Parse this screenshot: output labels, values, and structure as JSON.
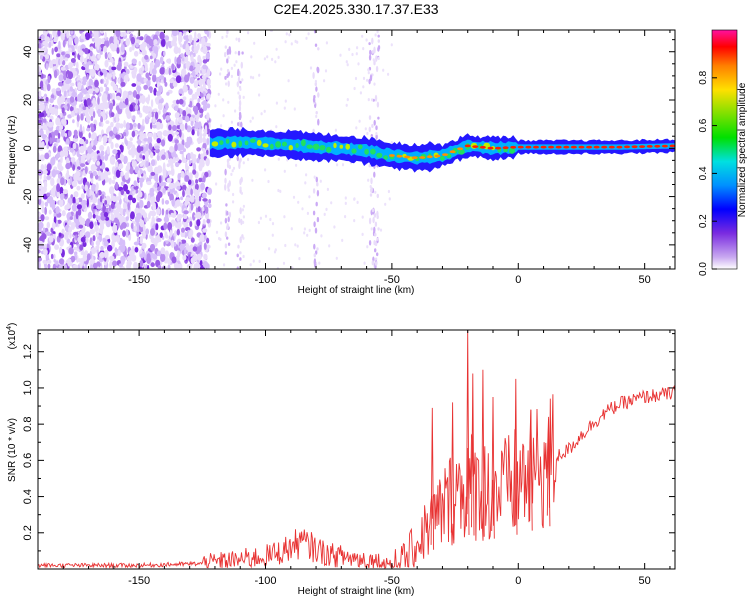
{
  "title": "C2E4.2025.330.17.37.E33",
  "colors": {
    "snr_line": "#e83232",
    "axis": "#000000"
  },
  "chart_data": [
    {
      "type": "heatmap",
      "xlabel": "Height of straight line (km)",
      "ylabel": "Frequency (Hz)",
      "xlim": [
        -190,
        62
      ],
      "ylim": [
        -50,
        49
      ],
      "xticks": [
        -150,
        -100,
        -50,
        0,
        50
      ],
      "xtick_labels": [
        "-150",
        "-100",
        "-50",
        "0",
        "50"
      ],
      "yticks": [
        -40,
        -20,
        0,
        20,
        40
      ],
      "ytick_labels": [
        "-40",
        "-20",
        "0",
        "20",
        "40"
      ],
      "noise_region": {
        "x_range": [
          -190,
          -122
        ],
        "description": "scattered purple speckle"
      },
      "signal_band_center": [
        [
          -122,
          2
        ],
        [
          -110,
          2.5
        ],
        [
          -100,
          2
        ],
        [
          -90,
          1.5
        ],
        [
          -80,
          0.5
        ],
        [
          -70,
          0
        ],
        [
          -60,
          -1
        ],
        [
          -50,
          -3
        ],
        [
          -40,
          -4
        ],
        [
          -30,
          -3
        ],
        [
          -25,
          -1
        ],
        [
          -20,
          1
        ],
        [
          -15,
          0.5
        ],
        [
          -10,
          0
        ],
        [
          0,
          0.5
        ],
        [
          20,
          0.5
        ],
        [
          40,
          0.5
        ],
        [
          62,
          1
        ]
      ],
      "colorbar": {
        "label": "Normalized spectral amplitude",
        "range": [
          0.0,
          1.0
        ],
        "ticks": [
          0.0,
          0.2,
          0.4,
          0.6,
          0.8
        ],
        "tick_labels": [
          "0.0",
          "0.2",
          "0.4",
          "0.6",
          "0.8"
        ]
      }
    },
    {
      "type": "line",
      "xlabel": "Height of straight line (km)",
      "ylabel": "SNR (10 * v/v)",
      "y_multiplier_label": "(x10",
      "y_multiplier_exp": "4",
      "xlim": [
        -190,
        62
      ],
      "ylim": [
        0,
        1.32
      ],
      "xticks": [
        -150,
        -100,
        -50,
        0,
        50
      ],
      "xtick_labels": [
        "-150",
        "-100",
        "-50",
        "0",
        "50"
      ],
      "yticks": [
        0.2,
        0.4,
        0.6,
        0.8,
        1.0,
        1.2
      ],
      "ytick_labels": [
        "0.2",
        "0.4",
        "0.6",
        "0.8",
        "1.0",
        "1.2"
      ],
      "series": [
        {
          "name": "SNR",
          "x": [
            -190,
            -150,
            -125,
            -112,
            -100,
            -95,
            -90,
            -86,
            -80,
            -75,
            -70,
            -65,
            -60,
            -55,
            -50,
            -45,
            -40,
            -35,
            -30,
            -25,
            -20,
            -15,
            -10,
            -5,
            0,
            5,
            10,
            15,
            20,
            25,
            30,
            35,
            40,
            45,
            50,
            55,
            62
          ],
          "values": [
            0.02,
            0.02,
            0.03,
            0.05,
            0.07,
            0.09,
            0.12,
            0.15,
            0.11,
            0.08,
            0.07,
            0.06,
            0.05,
            0.04,
            0.03,
            0.06,
            0.14,
            0.25,
            0.33,
            0.42,
            0.47,
            0.45,
            0.42,
            0.44,
            0.48,
            0.53,
            0.57,
            0.62,
            0.66,
            0.74,
            0.81,
            0.87,
            0.91,
            0.93,
            0.95,
            0.96,
            0.97
          ]
        }
      ],
      "spikes": [
        {
          "x": -34,
          "value": 0.89
        },
        {
          "x": -26,
          "value": 0.92
        },
        {
          "x": -20,
          "value": 1.32
        },
        {
          "x": -18,
          "value": 1.08
        },
        {
          "x": -14,
          "value": 1.1
        },
        {
          "x": -10,
          "value": 0.95
        },
        {
          "x": -1,
          "value": 1.05
        },
        {
          "x": 5,
          "value": 0.88
        },
        {
          "x": 12,
          "value": 0.84
        }
      ]
    }
  ]
}
